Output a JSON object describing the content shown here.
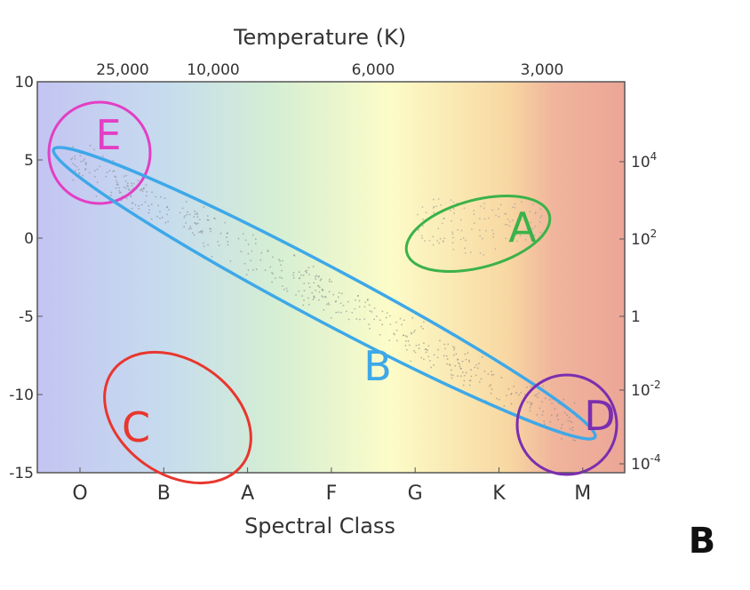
{
  "top_axis": {
    "title": "Temperature (K)",
    "ticks": [
      "25,000",
      "10,000",
      "6,000",
      "3,000"
    ]
  },
  "left_axis": {
    "ticks": [
      "10",
      "5",
      "0",
      "-5",
      "-10",
      "-15"
    ]
  },
  "right_axis": {
    "ticks": [
      {
        "base": "10",
        "exponent": "4"
      },
      {
        "base": "10",
        "exponent": "2"
      },
      {
        "base": "1"
      },
      {
        "base": "10",
        "exponent": "-2"
      },
      {
        "base": "10",
        "exponent": "-4"
      }
    ]
  },
  "bottom_axis": {
    "title": "Spectral Class",
    "ticks": [
      "O",
      "B",
      "A",
      "F",
      "G",
      "K",
      "M"
    ]
  },
  "regions": [
    {
      "label": "E"
    },
    {
      "label": "B"
    },
    {
      "label": "A"
    },
    {
      "label": "C"
    },
    {
      "label": "D"
    }
  ],
  "panel_label": "B"
}
